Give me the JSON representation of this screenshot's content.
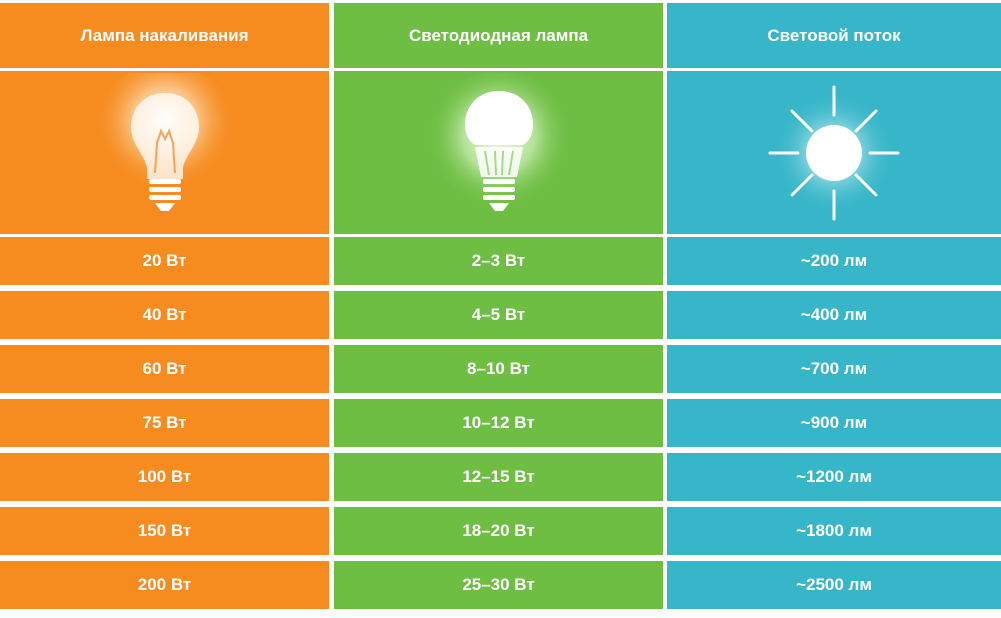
{
  "colors": {
    "orange": "#f68b1f",
    "green": "#6fbe44",
    "blue": "#38b6c9"
  },
  "columns": [
    {
      "header": "Лампа накаливания",
      "icon": "incandescent-bulb-icon",
      "values": [
        "20 Вт",
        "40 Вт",
        "60 Вт",
        "75 Вт",
        "100 Вт",
        "150 Вт",
        "200 Вт"
      ]
    },
    {
      "header": "Светодиодная лампа",
      "icon": "led-bulb-icon",
      "values": [
        "2–3 Вт",
        "4–5 Вт",
        "8–10 Вт",
        "10–12 Вт",
        "12–15 Вт",
        "18–20 Вт",
        "25–30 Вт"
      ]
    },
    {
      "header": "Световой поток",
      "icon": "sun-icon",
      "values": [
        "~200 лм",
        "~400 лм",
        "~700 лм",
        "~900 лм",
        "~1200 лм",
        "~1800 лм",
        "~2500 лм"
      ]
    }
  ]
}
